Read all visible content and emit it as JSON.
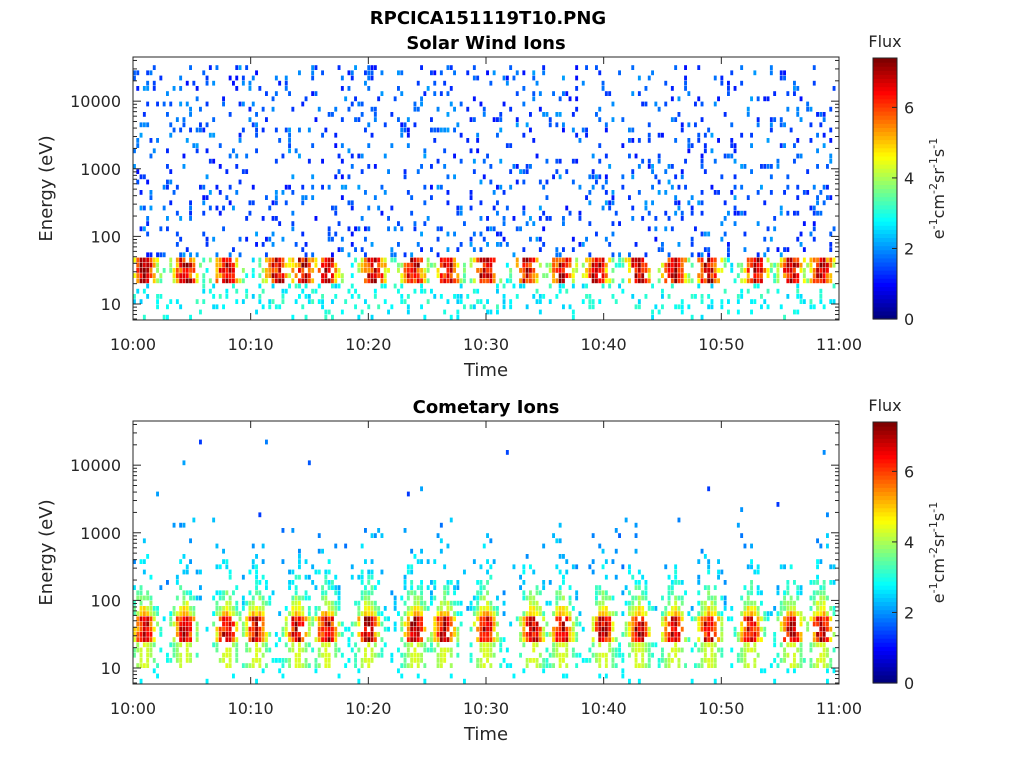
{
  "figure_title": "RPCICA151119T10.PNG",
  "chart_data": [
    {
      "type": "heatmap",
      "title": "Solar Wind Ions",
      "xlabel": "Time",
      "ylabel": "Energy (eV)",
      "x_ticks": [
        "10:00",
        "10:10",
        "10:20",
        "10:30",
        "10:40",
        "10:50",
        "11:00"
      ],
      "x_range_minutes": [
        0,
        60
      ],
      "y_ticks": [
        10,
        100,
        1000,
        10000
      ],
      "y_tick_labels": [
        "10",
        "100",
        "1000",
        "10000"
      ],
      "ylim": [
        5.8,
        45000
      ],
      "y_scale": "log",
      "colorbar": {
        "title": "Flux",
        "units": "eV-1cm-2sr-1s-1",
        "range": [
          0,
          7.4
        ],
        "ticks": [
          "0",
          "2",
          "4",
          "6"
        ],
        "colormap": "jet"
      },
      "bursts_minutes": [
        1.0,
        4.5,
        8.0,
        12.3,
        14.5,
        16.5,
        20.5,
        23.9,
        26.8,
        30.0,
        33.5,
        36.5,
        39.5,
        43.0,
        46.0,
        48.9,
        53.0,
        56.0,
        58.5
      ],
      "core_energy_eV": 40,
      "background": "sparse low-flux counts (flux 1-2) spread over 100-30000 eV; streaks at 6-13 eV"
    },
    {
      "type": "heatmap",
      "title": "Cometary Ions",
      "xlabel": "Time",
      "ylabel": "Energy (eV)",
      "x_ticks": [
        "10:00",
        "10:10",
        "10:20",
        "10:30",
        "10:40",
        "10:50",
        "11:00"
      ],
      "x_range_minutes": [
        0,
        60
      ],
      "y_ticks": [
        10,
        100,
        1000,
        10000
      ],
      "y_tick_labels": [
        "10",
        "100",
        "1000",
        "10000"
      ],
      "ylim": [
        5.8,
        45000
      ],
      "y_scale": "log",
      "colorbar": {
        "title": "Flux",
        "units": "eV-1cm-2sr-1s-1",
        "range": [
          0,
          7.4
        ],
        "ticks": [
          "0",
          "2",
          "4",
          "6"
        ],
        "colormap": "jet"
      },
      "bursts_minutes": [
        1.0,
        4.4,
        8.0,
        10.5,
        14.0,
        16.5,
        20.0,
        24.0,
        26.5,
        30.0,
        34.0,
        36.5,
        40.0,
        43.0,
        46.0,
        49.0,
        52.5,
        56.0,
        58.5
      ],
      "core_energy_eV": 40,
      "background": "plume extending up to ~1000 eV above each burst; isolated counts up to ~20000 eV"
    }
  ]
}
